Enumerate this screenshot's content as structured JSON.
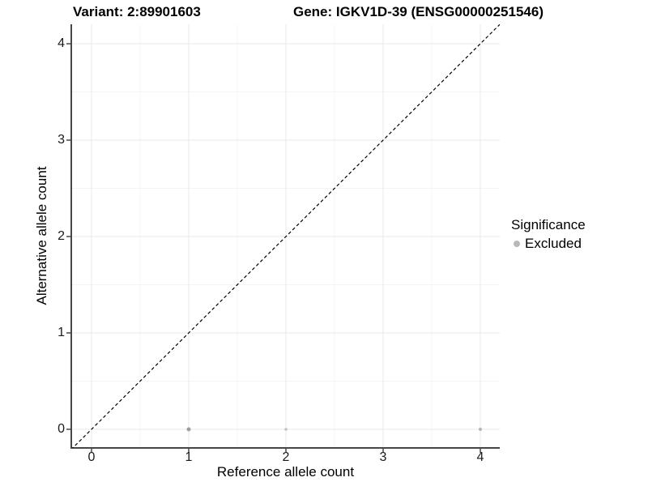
{
  "titles": {
    "left": "Variant: 2:89901603",
    "right": "Gene: IGKV1D-39 (ENSG00000251546)"
  },
  "axes": {
    "x": {
      "label": "Reference allele count",
      "tick_labels": [
        "0",
        "1",
        "2",
        "3",
        "4"
      ]
    },
    "y": {
      "label": "Alternative allele count",
      "tick_labels": [
        "0",
        "1",
        "2",
        "3",
        "4"
      ]
    }
  },
  "legend": {
    "title": "Significance",
    "items": [
      {
        "label": "Excluded",
        "color": "#b9b9b9"
      }
    ]
  },
  "chart_data": {
    "type": "scatter",
    "title_left": "Variant: 2:89901603",
    "title_right": "Gene: IGKV1D-39 (ENSG00000251546)",
    "xlabel": "Reference allele count",
    "ylabel": "Alternative allele count",
    "xlim": [
      -0.21,
      4.2
    ],
    "ylim": [
      -0.19,
      4.2
    ],
    "x_ticks": [
      0,
      1,
      2,
      3,
      4
    ],
    "y_ticks": [
      0,
      1,
      2,
      3,
      4
    ],
    "grid": "major-and-minor",
    "legend_position": "right",
    "series": [
      {
        "name": "Excluded",
        "points": [
          {
            "x": 1,
            "y": 0,
            "size": 5.0,
            "color": "#9e9e9e"
          },
          {
            "x": 2,
            "y": 0,
            "size": 3.6,
            "color": "#c2c2c2"
          },
          {
            "x": 4,
            "y": 0,
            "size": 4.0,
            "color": "#b6b6b6"
          }
        ]
      }
    ],
    "reference_line": {
      "slope": 1,
      "intercept": 0,
      "style": "dashed",
      "color": "#000000"
    },
    "style": {
      "background": "#ffffff",
      "grid_major": "#e8e8e8",
      "grid_minor": "#f4f4f4",
      "axis_line": "#474747",
      "tick_mark": "#474747"
    }
  }
}
